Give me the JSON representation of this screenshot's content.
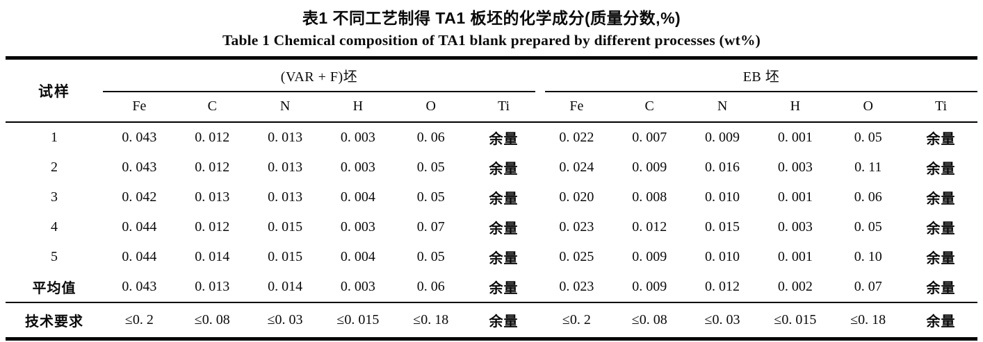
{
  "titles": {
    "cn": "表1  不同工艺制得 TA1 板坯的化学成分(质量分数,%)",
    "en": "Table 1  Chemical composition of TA1 blank prepared by different processes (wt%)"
  },
  "table": {
    "sample_col_header": "试样",
    "group1_label": "(VAR + F)坯",
    "group2_label": "EB 坯",
    "columns": [
      "Fe",
      "C",
      "N",
      "H",
      "O",
      "Ti",
      "Fe",
      "C",
      "N",
      "H",
      "O",
      "Ti"
    ],
    "rows": [
      {
        "cells": [
          "1",
          "0. 043",
          "0. 012",
          "0. 013",
          "0. 003",
          "0. 06",
          "余量",
          "0. 022",
          "0. 007",
          "0. 009",
          "0. 001",
          "0. 05",
          "余量"
        ]
      },
      {
        "cells": [
          "2",
          "0. 043",
          "0. 012",
          "0. 013",
          "0. 003",
          "0. 05",
          "余量",
          "0. 024",
          "0. 009",
          "0. 016",
          "0. 003",
          "0. 11",
          "余量"
        ]
      },
      {
        "cells": [
          "3",
          "0. 042",
          "0. 013",
          "0. 013",
          "0. 004",
          "0. 05",
          "余量",
          "0. 020",
          "0. 008",
          "0. 010",
          "0. 001",
          "0. 06",
          "余量"
        ]
      },
      {
        "cells": [
          "4",
          "0. 044",
          "0. 012",
          "0. 015",
          "0. 003",
          "0. 07",
          "余量",
          "0. 023",
          "0. 012",
          "0. 015",
          "0. 003",
          "0. 05",
          "余量"
        ]
      },
      {
        "cells": [
          "5",
          "0. 044",
          "0. 014",
          "0. 015",
          "0. 004",
          "0. 05",
          "余量",
          "0. 025",
          "0. 009",
          "0. 010",
          "0. 001",
          "0. 10",
          "余量"
        ]
      },
      {
        "cells": [
          "平均值",
          "0. 043",
          "0. 013",
          "0. 014",
          "0. 003",
          "0. 06",
          "余量",
          "0. 023",
          "0. 009",
          "0. 012",
          "0. 002",
          "0. 07",
          "余量"
        ]
      },
      {
        "cells": [
          "技术要求",
          "≤0. 2",
          "≤0. 08",
          "≤0. 03",
          "≤0. 015",
          "≤0. 18",
          "余量",
          "≤0. 2",
          "≤0. 08",
          "≤0. 03",
          "≤0. 015",
          "≤0. 18",
          "余量"
        ]
      }
    ]
  }
}
